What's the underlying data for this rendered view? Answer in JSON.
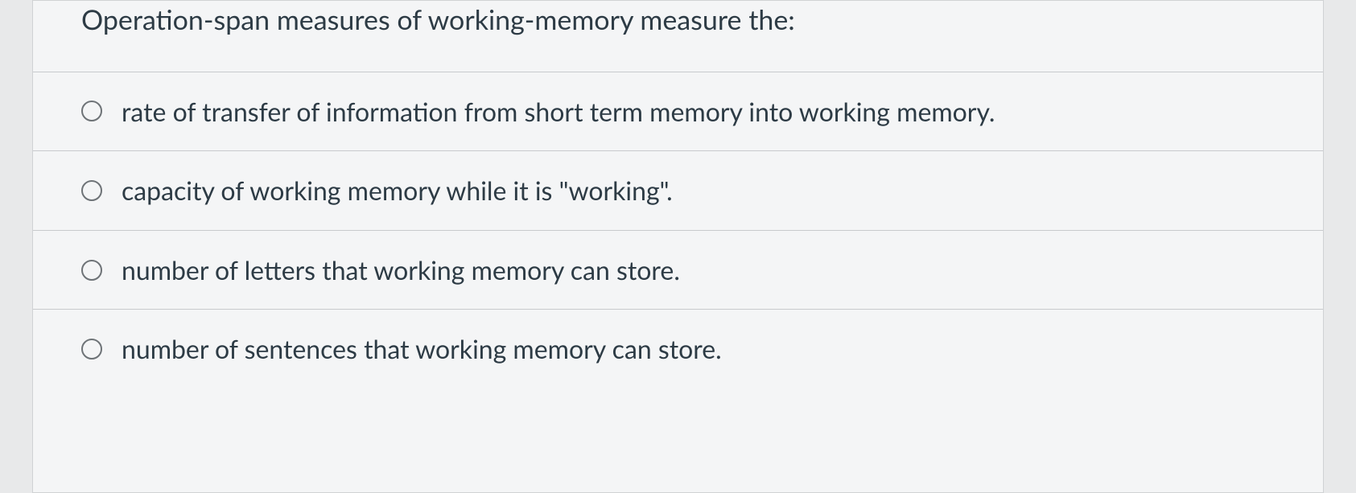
{
  "question": {
    "prompt": "Operation-span measures of working-memory measure the:",
    "options": [
      {
        "text": "rate of transfer of information from short term memory into working memory.",
        "selected": false
      },
      {
        "text": "capacity of working memory while it is \"working\".",
        "selected": false
      },
      {
        "text": "number of letters that working memory can store.",
        "selected": false
      },
      {
        "text": "number of sentences that working memory can store.",
        "selected": false
      }
    ]
  },
  "colors": {
    "background": "#e8e9ea",
    "card_background": "#f4f5f6",
    "border": "#c8cacd",
    "text": "#2d3b45",
    "radio_border": "#6e7377"
  },
  "typography": {
    "question_fontsize": 34,
    "option_fontsize": 32,
    "font_family": "Lato"
  }
}
